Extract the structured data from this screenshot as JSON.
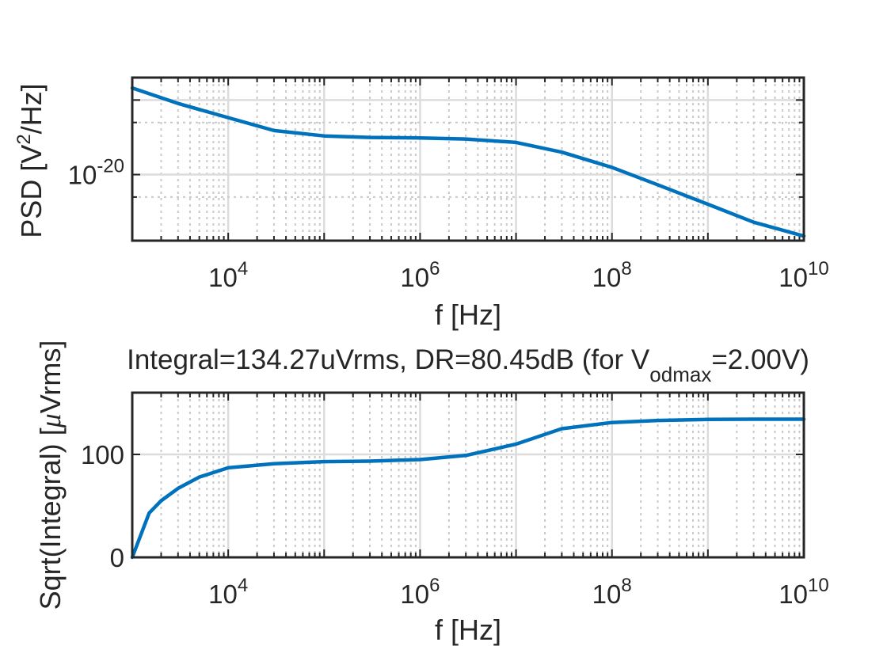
{
  "colors": {
    "series": "#0072BD",
    "axes": "#262626"
  },
  "chart_data": [
    {
      "type": "line",
      "xscale": "log",
      "yscale": "log",
      "xlim": [
        1000,
        10000000000
      ],
      "ylim": [
        1.3e-21,
        2e-19
      ],
      "grid": true,
      "xlabel_parts": [
        "f [Hz]"
      ],
      "ylabel_parts": {
        "a": "PSD [V",
        "sup": "2",
        "b": "/Hz]"
      },
      "x_ticks": [
        10000,
        1000000,
        100000000,
        10000000000
      ],
      "x_tick_labels": [
        {
          "base": "10",
          "exp": "4"
        },
        {
          "base": "10",
          "exp": "6"
        },
        {
          "base": "10",
          "exp": "8"
        },
        {
          "base": "10",
          "exp": "10"
        }
      ],
      "y_ticks": [
        1e-20
      ],
      "y_tick_labels": [
        {
          "base": "10",
          "exp": "-20"
        }
      ],
      "x": [
        1000,
        3000,
        10000,
        30000,
        100000,
        300000,
        1000000,
        3000000,
        10000000,
        30000000,
        100000000,
        300000000,
        1000000000,
        3000000000,
        10000000000
      ],
      "y": [
        1.45e-19,
        9e-20,
        5.8e-20,
        3.9e-20,
        3.3e-20,
        3.15e-20,
        3.1e-20,
        3e-20,
        2.7e-20,
        2e-20,
        1.25e-20,
        7.3e-21,
        4e-21,
        2.3e-21,
        1.5e-21
      ]
    },
    {
      "type": "line",
      "xscale": "log",
      "yscale": "linear",
      "xlim": [
        1000,
        10000000000
      ],
      "ylim": [
        0,
        160
      ],
      "grid": true,
      "title_parts": {
        "a": "Integral=134.27uVrms, DR=80.45dB (for V",
        "sub": "odmax",
        "b": "=2.00V)"
      },
      "xlabel_parts": [
        "f [Hz]"
      ],
      "ylabel_parts": {
        "a": "Sqrt(Integral) [",
        "mu": "μ",
        "b": "Vrms]"
      },
      "x_ticks": [
        10000,
        1000000,
        100000000,
        10000000000
      ],
      "x_tick_labels": [
        {
          "base": "10",
          "exp": "4"
        },
        {
          "base": "10",
          "exp": "6"
        },
        {
          "base": "10",
          "exp": "8"
        },
        {
          "base": "10",
          "exp": "10"
        }
      ],
      "y_ticks": [
        0,
        100
      ],
      "y_tick_labels": [
        "0",
        "100"
      ],
      "x": [
        1000,
        1500,
        2000,
        3000,
        5000,
        10000,
        30000,
        100000,
        300000,
        1000000,
        3000000,
        10000000,
        30000000,
        100000000,
        300000000,
        1000000000,
        3000000000,
        10000000000
      ],
      "y": [
        0,
        43,
        55,
        67,
        78,
        87,
        91,
        93,
        93.5,
        95,
        99,
        110,
        125,
        131,
        133,
        134,
        134.2,
        134.27
      ]
    }
  ]
}
